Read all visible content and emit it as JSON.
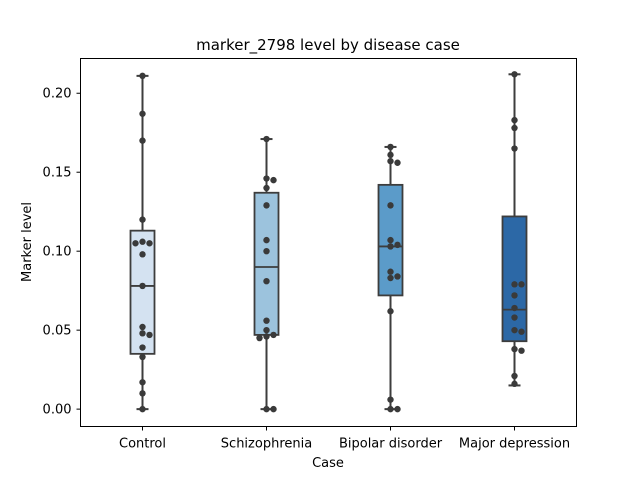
{
  "chart_data": {
    "type": "box",
    "title": "marker_2798 level by disease case",
    "xlabel": "Case",
    "ylabel": "Marker level",
    "ylim": [
      -0.011,
      0.222
    ],
    "yticks": [
      "0.00",
      "0.05",
      "0.10",
      "0.15",
      "0.20"
    ],
    "grid": false,
    "categories": [
      "Control",
      "Schizophrenia",
      "Bipolar disorder",
      "Major depression"
    ],
    "colors": [
      "#d4e2f1",
      "#9cc3dd",
      "#5b9bc9",
      "#2c68a6"
    ],
    "boxes": [
      {
        "min": 0.0,
        "q1": 0.035,
        "median": 0.078,
        "q3": 0.113,
        "max": 0.211
      },
      {
        "min": 0.0,
        "q1": 0.047,
        "median": 0.09,
        "q3": 0.137,
        "max": 0.171
      },
      {
        "min": 0.0,
        "q1": 0.072,
        "median": 0.103,
        "q3": 0.142,
        "max": 0.166
      },
      {
        "min": 0.015,
        "q1": 0.043,
        "median": 0.063,
        "q3": 0.122,
        "max": 0.212
      }
    ],
    "points": [
      [
        0.211,
        0.187,
        0.17,
        0.12,
        0.106,
        0.105,
        0.105,
        0.098,
        0.078,
        0.052,
        0.048,
        0.047,
        0.039,
        0.033,
        0.017,
        0.01,
        0.0
      ],
      [
        0.171,
        0.146,
        0.145,
        0.14,
        0.129,
        0.107,
        0.1,
        0.081,
        0.056,
        0.05,
        0.047,
        0.046,
        0.045,
        0.0,
        0.0
      ],
      [
        0.166,
        0.161,
        0.157,
        0.156,
        0.129,
        0.107,
        0.104,
        0.103,
        0.087,
        0.084,
        0.083,
        0.062,
        0.006,
        0.0,
        0.0
      ],
      [
        0.212,
        0.183,
        0.178,
        0.165,
        0.079,
        0.079,
        0.072,
        0.064,
        0.058,
        0.05,
        0.049,
        0.038,
        0.037,
        0.021,
        0.016
      ]
    ]
  }
}
